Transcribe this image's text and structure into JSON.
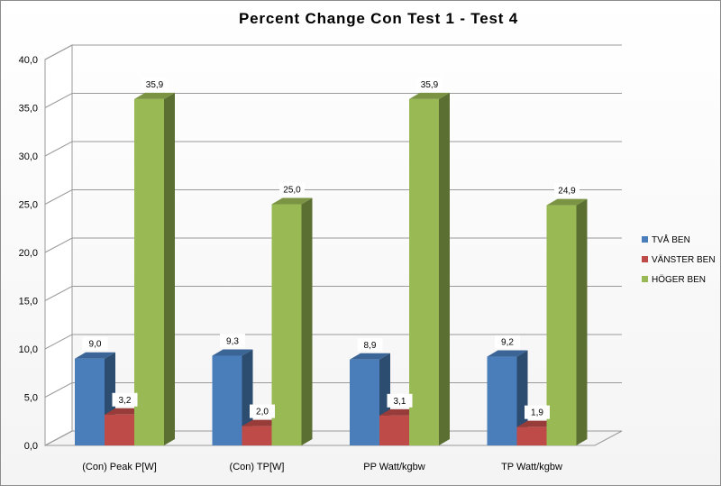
{
  "chart_data": {
    "type": "bar",
    "title": "Percent Change Con Test 1 - Test 4",
    "categories": [
      "(Con) Peak P[W]",
      "(Con) TP[W]",
      "PP Watt/kgbw",
      "TP Watt/kgbw"
    ],
    "series": [
      {
        "name": "TVÅ BEN",
        "color": "#4a7ebb",
        "values": [
          9.0,
          9.3,
          8.9,
          9.2
        ],
        "labels": [
          "9,0",
          "9,3",
          "8,9",
          "9,2"
        ]
      },
      {
        "name": "VÄNSTER BEN",
        "color": "#be4b48",
        "values": [
          3.2,
          2.0,
          3.1,
          1.9
        ],
        "labels": [
          "3,2",
          "2,0",
          "3,1",
          "1,9"
        ]
      },
      {
        "name": "HÖGER BEN",
        "color": "#98b954",
        "values": [
          35.9,
          25.0,
          35.9,
          24.9
        ],
        "labels": [
          "35,9",
          "25,0",
          "35,9",
          "24,9"
        ]
      }
    ],
    "ylim": [
      0,
      40
    ],
    "yticks": [
      0,
      5,
      10,
      15,
      20,
      25,
      30,
      35,
      40
    ],
    "ytick_labels": [
      "0,0",
      "5,0",
      "10,0",
      "15,0",
      "20,0",
      "25,0",
      "30,0",
      "35,0",
      "40,0"
    ],
    "grid": true,
    "legend": "right",
    "style": "3d-clustered"
  }
}
